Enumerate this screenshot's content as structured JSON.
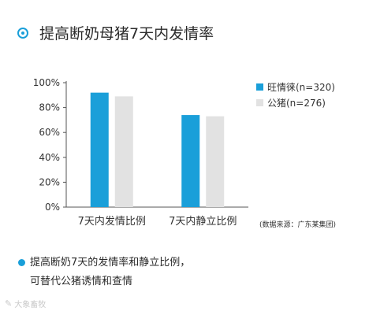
{
  "title": "提高断奶母猪7天内发情率",
  "source_note": "(数据来源：广东某集团)",
  "note_lines": [
    "提高断奶7天的发情率和静立比例，",
    "可替代公猪诱情和查情"
  ],
  "watermark": "大象畜牧",
  "colors": {
    "accent": "#1a9fd9",
    "series_1": "#1a9fd9",
    "series_2": "#e2e2e2"
  },
  "chart_data": {
    "type": "bar",
    "categories": [
      "7天内发情比例",
      "7天内静立比例"
    ],
    "series": [
      {
        "name": "旺情徕(n=320)",
        "values": [
          92,
          74
        ]
      },
      {
        "name": "公猪(n=276)",
        "values": [
          89,
          73
        ]
      }
    ],
    "yticks": [
      "0%",
      "20%",
      "40%",
      "60%",
      "80%",
      "100%"
    ],
    "ylim": [
      0,
      100
    ],
    "legend": "right",
    "grid": false
  }
}
